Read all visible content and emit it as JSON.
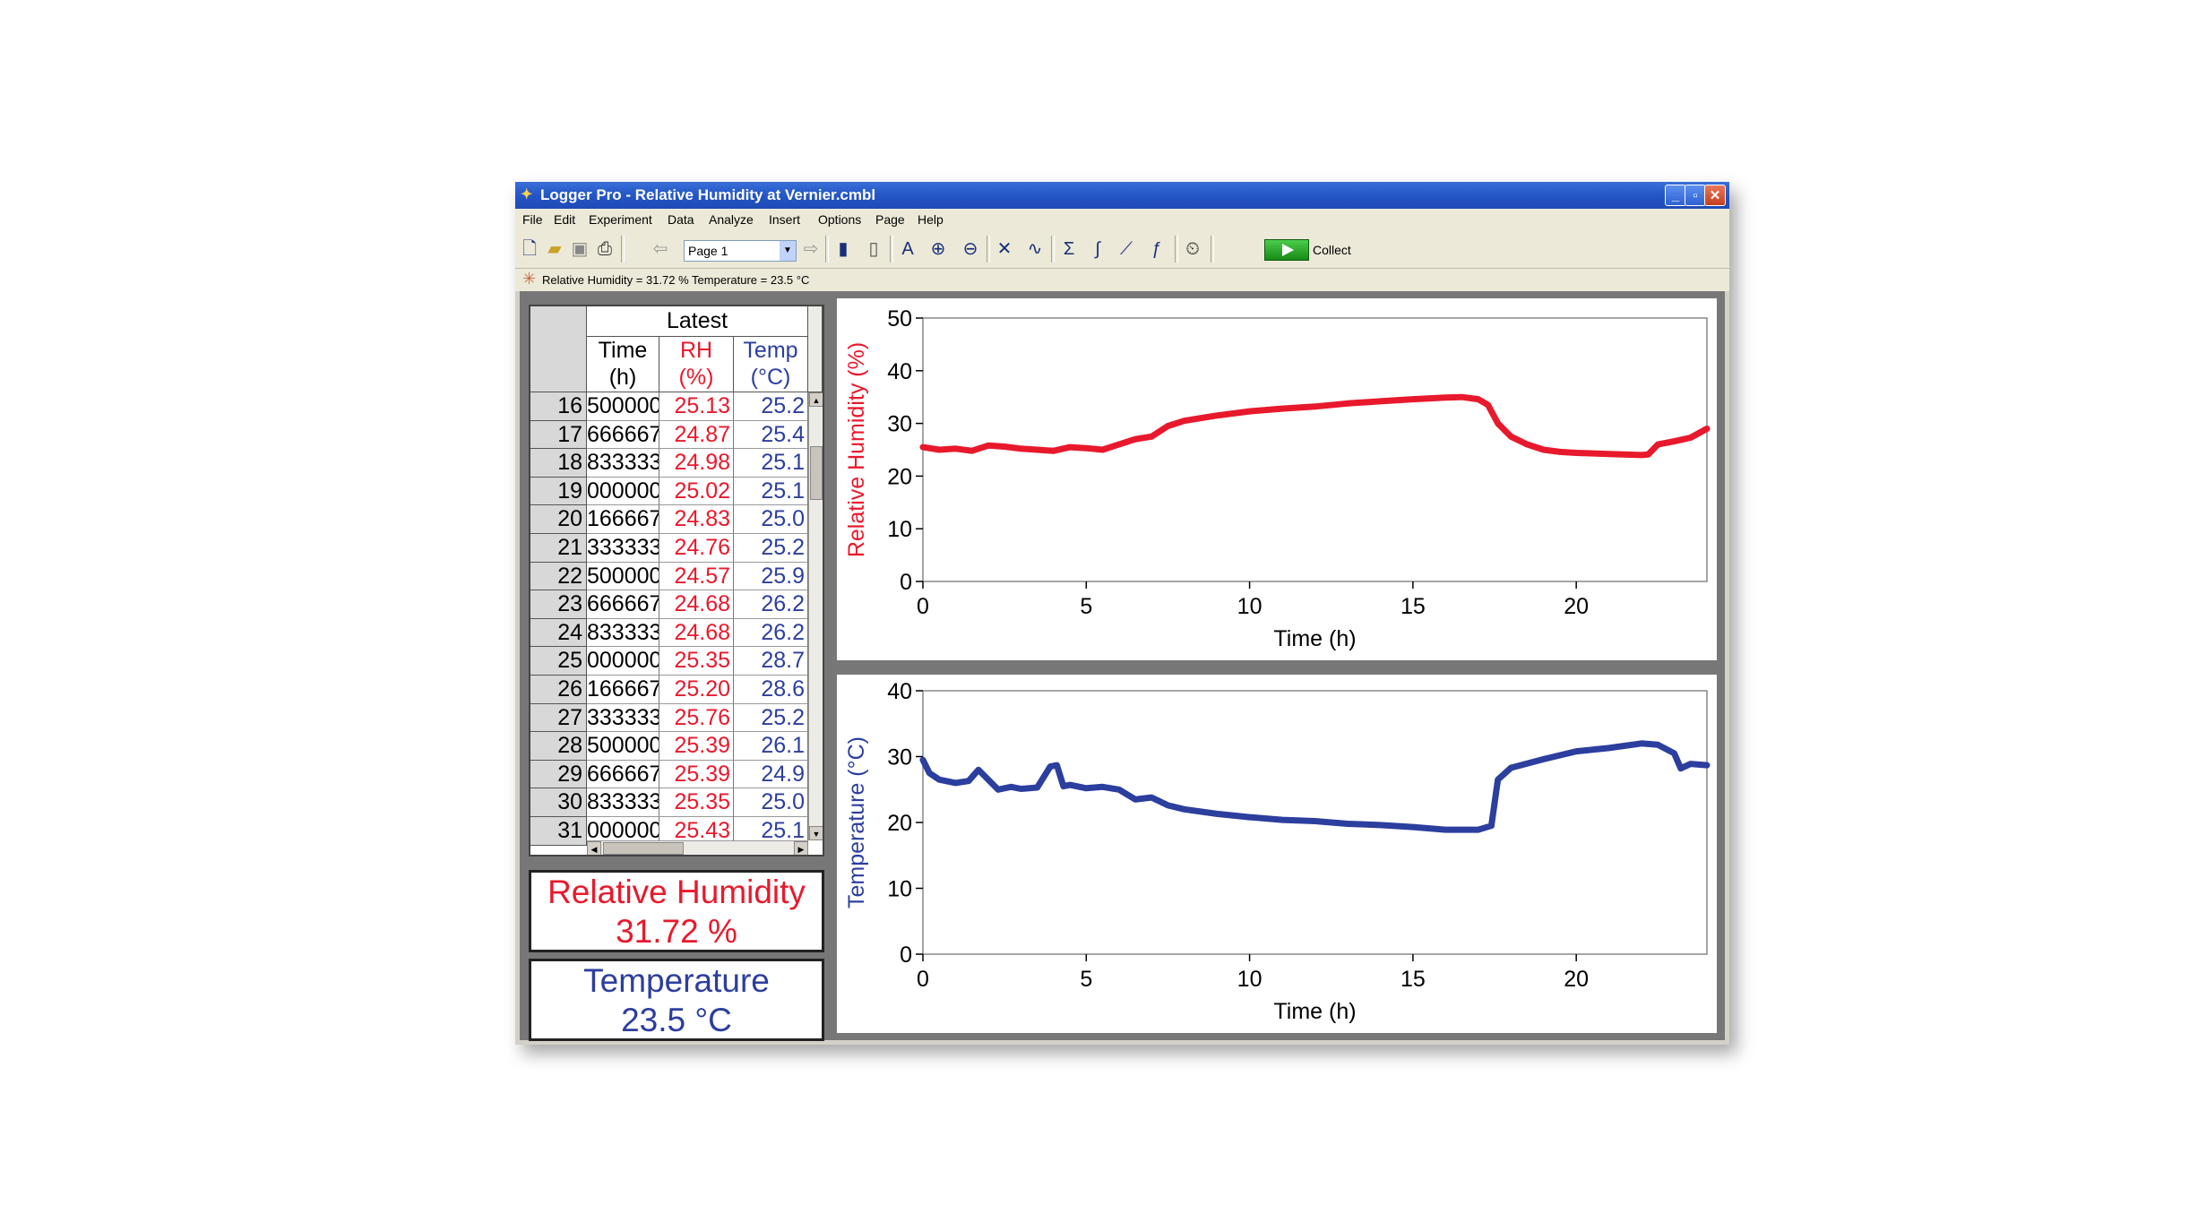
{
  "window": {
    "title": "Logger Pro - Relative Humidity at Vernier.cmbl",
    "minimize": "_",
    "maximize": "▫",
    "close": "✕"
  },
  "menu": [
    "File",
    "Edit",
    "Experiment",
    "Data",
    "Analyze",
    "Insert",
    "Options",
    "Page",
    "Help"
  ],
  "toolbar": {
    "page_select": "Page 1",
    "collect_label": "Collect",
    "icons": [
      "new-file-icon",
      "open-folder-icon",
      "save-icon",
      "print-icon",
      "prev-page-icon",
      "next-page-icon",
      "table-icon",
      "meter-icon",
      "autoscale-icon",
      "zoom-in-icon",
      "zoom-out-icon",
      "examine-icon",
      "tangent-icon",
      "statistics-icon",
      "integral-icon",
      "linear-fit-icon",
      "curve-fit-icon",
      "data-collection-icon"
    ]
  },
  "status": {
    "readout": "Relative Humidity = 31.72 %    Temperature = 23.5 °C"
  },
  "table": {
    "group_header": "Latest",
    "columns": [
      {
        "name": "Time",
        "unit": "(h)",
        "color": "#000000"
      },
      {
        "name": "RH",
        "unit": "(%)",
        "color": "#e8192c"
      },
      {
        "name": "Temp",
        "unit": "(°C)",
        "color": "#2c3e9e"
      }
    ],
    "rows": [
      {
        "n": "16",
        "time": "500000",
        "rh": "25.13",
        "temp": "25.2"
      },
      {
        "n": "17",
        "time": "666667",
        "rh": "24.87",
        "temp": "25.4"
      },
      {
        "n": "18",
        "time": "833333",
        "rh": "24.98",
        "temp": "25.1"
      },
      {
        "n": "19",
        "time": "000000",
        "rh": "25.02",
        "temp": "25.1"
      },
      {
        "n": "20",
        "time": "166667",
        "rh": "24.83",
        "temp": "25.0"
      },
      {
        "n": "21",
        "time": "333333",
        "rh": "24.76",
        "temp": "25.2"
      },
      {
        "n": "22",
        "time": "500000",
        "rh": "24.57",
        "temp": "25.9"
      },
      {
        "n": "23",
        "time": "666667",
        "rh": "24.68",
        "temp": "26.2"
      },
      {
        "n": "24",
        "time": "833333",
        "rh": "24.68",
        "temp": "26.2"
      },
      {
        "n": "25",
        "time": "000000",
        "rh": "25.35",
        "temp": "28.7"
      },
      {
        "n": "26",
        "time": "166667",
        "rh": "25.20",
        "temp": "28.6"
      },
      {
        "n": "27",
        "time": "333333",
        "rh": "25.76",
        "temp": "25.2"
      },
      {
        "n": "28",
        "time": "500000",
        "rh": "25.39",
        "temp": "26.1"
      },
      {
        "n": "29",
        "time": "666667",
        "rh": "25.39",
        "temp": "24.9"
      },
      {
        "n": "30",
        "time": "833333",
        "rh": "25.35",
        "temp": "25.0"
      },
      {
        "n": "31",
        "time": "000000",
        "rh": "25.43",
        "temp": "25.1"
      }
    ]
  },
  "meters": {
    "rh_label": "Relative Humidity",
    "rh_value": "31.72 %",
    "temp_label": "Temperature",
    "temp_value": "23.5 °C"
  },
  "chart_data": [
    {
      "type": "line",
      "ylabel": "Relative Humidity (%)",
      "xlabel": "Time (h)",
      "xlim": [
        0,
        24
      ],
      "ylim": [
        0,
        50
      ],
      "xticks": [
        0,
        5,
        10,
        15,
        20
      ],
      "yticks": [
        0,
        10,
        20,
        30,
        40,
        50
      ],
      "color": "#e8192c",
      "series": [
        {
          "x": [
            0,
            0.5,
            1,
            1.5,
            2,
            2.5,
            3,
            3.5,
            4,
            4.5,
            5,
            5.5,
            6,
            6.5,
            7,
            7.5,
            8,
            8.5,
            9,
            10,
            11,
            12,
            13,
            14,
            15,
            16,
            16.5,
            17,
            17.3,
            17.6,
            18,
            18.5,
            19,
            19.5,
            20,
            21,
            22,
            22.2,
            22.5,
            23,
            23.5,
            24
          ],
          "y": [
            25.5,
            25,
            25.2,
            24.8,
            25.8,
            25.6,
            25.2,
            25,
            24.8,
            25.5,
            25.3,
            25,
            26,
            27,
            27.5,
            29.5,
            30.5,
            31,
            31.5,
            32.3,
            32.8,
            33.2,
            33.8,
            34.2,
            34.6,
            34.9,
            35,
            34.6,
            33.5,
            30,
            27.5,
            26,
            25,
            24.6,
            24.4,
            24.2,
            24,
            24.1,
            26,
            26.6,
            27.3,
            29
          ]
        }
      ]
    },
    {
      "type": "line",
      "ylabel": "Temperature (°C)",
      "xlabel": "Time (h)",
      "xlim": [
        0,
        24
      ],
      "ylim": [
        0,
        40
      ],
      "xticks": [
        0,
        5,
        10,
        15,
        20
      ],
      "yticks": [
        0,
        10,
        20,
        30,
        40
      ],
      "color": "#2c3e9e",
      "series": [
        {
          "x": [
            0,
            0.2,
            0.5,
            1,
            1.4,
            1.7,
            2,
            2.3,
            2.7,
            3,
            3.5,
            3.9,
            4.1,
            4.3,
            4.5,
            5,
            5.5,
            6,
            6.5,
            7,
            7.5,
            8,
            9,
            10,
            11,
            12,
            13,
            14,
            15,
            16,
            17,
            17.4,
            17.6,
            18,
            19,
            20,
            21,
            22,
            22.5,
            23,
            23.2,
            23.5,
            24
          ],
          "y": [
            29.5,
            27.5,
            26.5,
            26,
            26.3,
            28,
            26.5,
            25,
            25.4,
            25.1,
            25.3,
            28.5,
            28.7,
            25.5,
            25.7,
            25.2,
            25.4,
            25,
            23.5,
            23.8,
            22.6,
            22,
            21.3,
            20.8,
            20.4,
            20.2,
            19.8,
            19.6,
            19.3,
            18.9,
            18.9,
            19.5,
            26.5,
            28.3,
            29.6,
            30.8,
            31.3,
            32,
            31.8,
            30.5,
            28.2,
            28.9,
            28.7
          ]
        }
      ]
    }
  ]
}
